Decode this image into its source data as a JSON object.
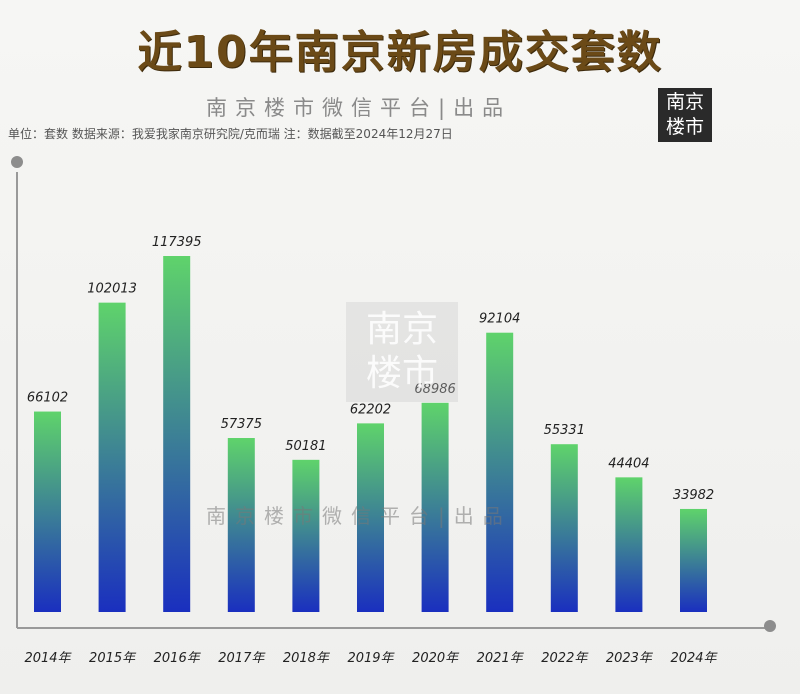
{
  "header": {
    "title": "近10年南京新房成交套数",
    "subtitle": "南京楼市微信平台|出品",
    "note": "单位：套数   数据来源：我爱我家南京研究院/克而瑞   注：数据截至2024年12月27日",
    "logo_line1": "南京",
    "logo_line2": "楼市"
  },
  "watermark": {
    "box_line1": "南京",
    "box_line2": "楼市",
    "text": "南京楼市微信平台|出品"
  },
  "colors": {
    "bar_top": "#5fd36b",
    "bar_bottom": "#1a2fbf",
    "title": "#6b4a17",
    "axis": "#999999"
  },
  "chart_data": {
    "type": "bar",
    "categories": [
      "2014年",
      "2015年",
      "2016年",
      "2017年",
      "2018年",
      "2019年",
      "2020年",
      "2021年",
      "2022年",
      "2023年",
      "2024年"
    ],
    "values": [
      66102,
      102013,
      117395,
      57375,
      50181,
      62202,
      68986,
      92104,
      55331,
      44404,
      33982
    ],
    "ylim": [
      0,
      150000
    ],
    "title": "近10年南京新房成交套数",
    "xlabel": "",
    "ylabel": "",
    "grid": false,
    "legend": "none"
  }
}
